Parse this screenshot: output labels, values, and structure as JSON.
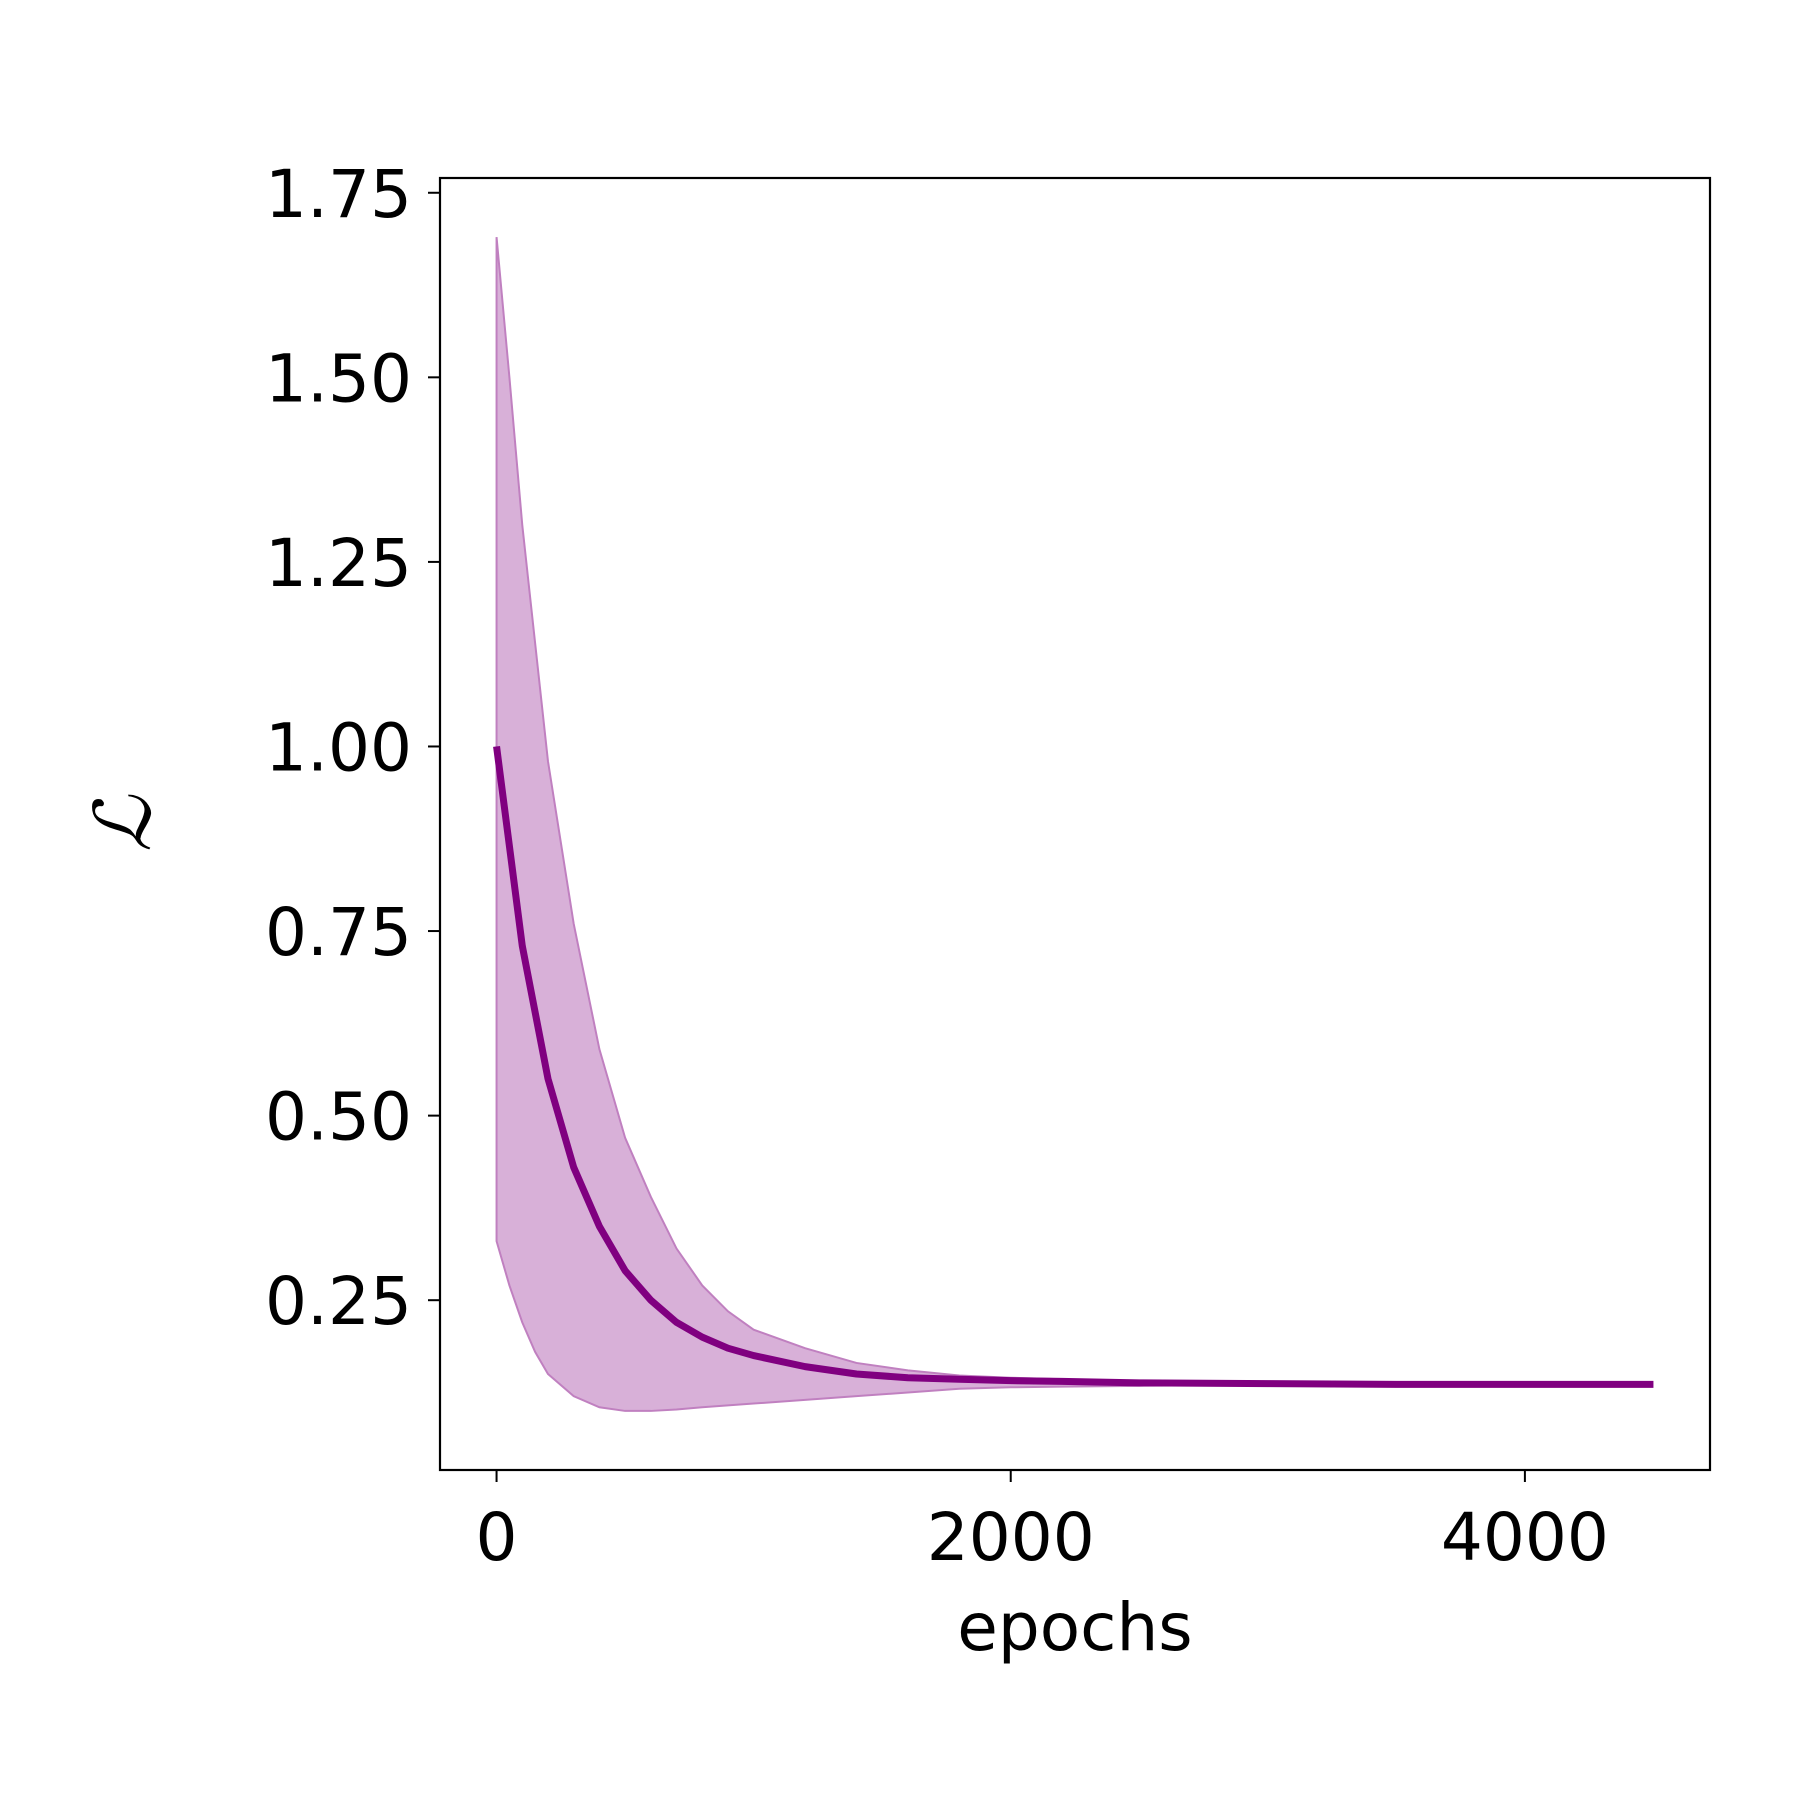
{
  "chart_data": {
    "type": "line",
    "title": "",
    "xlabel": "epochs",
    "ylabel": "ℒ",
    "xlim": [
      -220,
      4720
    ],
    "ylim": [
      0.02,
      1.77
    ],
    "xticks": [
      0,
      2000,
      4000
    ],
    "xtick_labels": [
      "0",
      "2000",
      "4000"
    ],
    "yticks": [
      0.25,
      0.5,
      0.75,
      1.0,
      1.25,
      1.5,
      1.75
    ],
    "ytick_labels": [
      "0.25",
      "0.50",
      "0.75",
      "1.00",
      "1.25",
      "1.50",
      "1.75"
    ],
    "grid": false,
    "legend": "none",
    "colors": {
      "line": "#800080",
      "band": "#d8b0d8",
      "band_edge": "#c080c0",
      "axes": "#000000"
    },
    "series": [
      {
        "role": "mean",
        "x": [
          0,
          100,
          200,
          300,
          400,
          500,
          600,
          700,
          800,
          900,
          1000,
          1200,
          1400,
          1600,
          1800,
          2000,
          2200,
          2500,
          3000,
          3500,
          4000,
          4500
        ],
        "y": [
          1.0,
          0.73,
          0.55,
          0.43,
          0.35,
          0.29,
          0.25,
          0.22,
          0.2,
          0.185,
          0.175,
          0.16,
          0.15,
          0.145,
          0.143,
          0.141,
          0.14,
          0.138,
          0.137,
          0.136,
          0.136,
          0.136
        ]
      },
      {
        "role": "band-upper",
        "x": [
          0,
          50,
          100,
          200,
          300,
          400,
          500,
          600,
          700,
          800,
          900,
          1000,
          1200,
          1400,
          1600,
          1800,
          2000,
          2200,
          2500,
          2800,
          3000
        ],
        "y": [
          1.69,
          1.5,
          1.3,
          0.98,
          0.76,
          0.59,
          0.47,
          0.39,
          0.32,
          0.27,
          0.235,
          0.21,
          0.185,
          0.165,
          0.155,
          0.148,
          0.145,
          0.143,
          0.14,
          0.138,
          0.137
        ]
      },
      {
        "role": "band-lower",
        "x": [
          0,
          50,
          100,
          150,
          200,
          300,
          400,
          500,
          600,
          700,
          800,
          1000,
          1200,
          1400,
          1600,
          1800,
          2000,
          2200,
          2500,
          2800,
          3000
        ],
        "y": [
          0.33,
          0.27,
          0.22,
          0.18,
          0.15,
          0.12,
          0.105,
          0.1,
          0.1,
          0.102,
          0.105,
          0.11,
          0.115,
          0.12,
          0.125,
          0.13,
          0.132,
          0.133,
          0.134,
          0.135,
          0.136
        ]
      }
    ]
  }
}
